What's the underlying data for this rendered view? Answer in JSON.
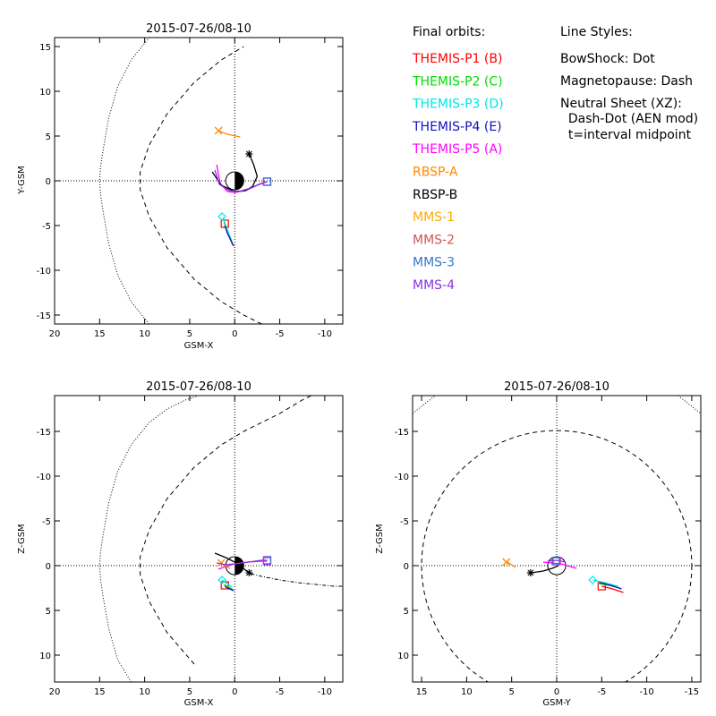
{
  "chart_data": [
    {
      "type": "line",
      "id": "xy",
      "title": "2015-07-26/08-10",
      "xlabel": "GSM-X",
      "ylabel": "Y-GSM",
      "xlim": [
        20,
        -12
      ],
      "ylim": [
        16,
        -16
      ],
      "xticks": [
        20,
        15,
        10,
        5,
        0,
        -5,
        -10
      ],
      "yticks": [
        -15,
        -10,
        -5,
        0,
        5,
        10,
        15
      ],
      "xtick_labels": [
        "20",
        "15",
        "10",
        "5",
        "0",
        "-5",
        "-10"
      ],
      "ytick_labels": [
        "-15",
        "-10",
        "-5",
        "0",
        "5",
        "10",
        "15"
      ],
      "earth_terminator_axis": "vertical",
      "bowshock": {
        "x": [
          9.5,
          11.5,
          13,
          14,
          14.6,
          14.9,
          15,
          14.9,
          14.6,
          14,
          13,
          11.5,
          9.5
        ],
        "y": [
          -16,
          -13.5,
          -10.5,
          -7,
          -3.5,
          -1.5,
          0,
          1.5,
          3.5,
          7,
          10.5,
          13.5,
          16
        ]
      },
      "magnetopause": {
        "x": [
          -3,
          -1,
          1.5,
          4.5,
          7.5,
          9.5,
          10.5,
          10.5,
          9.5,
          7.5,
          4.5,
          1.5,
          -1
        ],
        "y": [
          -16,
          -15,
          -13.5,
          -11,
          -7.5,
          -4,
          -1,
          1,
          4,
          7.5,
          11,
          13.5,
          15
        ]
      },
      "series": [
        {
          "name": "THEMIS-P1 (B)",
          "color": "#ff0000",
          "x": [
            0.2,
            0.8,
            1.1
          ],
          "y": [
            -7.2,
            -5.8,
            -4.8
          ],
          "marker": "square",
          "mx": 1.1,
          "my": -4.8
        },
        {
          "name": "THEMIS-P2 (C)",
          "color": "#00dd00",
          "x": [
            0.3,
            0.9,
            1.2
          ],
          "y": [
            -7.0,
            -5.5,
            -4.6
          ],
          "marker": "none"
        },
        {
          "name": "THEMIS-P3 (D)",
          "color": "#00e5e5",
          "x": [
            0.3,
            1.0,
            1.3
          ],
          "y": [
            -6.8,
            -5.0,
            -4.1
          ],
          "marker": "diamond",
          "mx": 1.4,
          "my": -4.0
        },
        {
          "name": "THEMIS-P4 (E)",
          "color": "#1010c0",
          "x": [
            0.1,
            0.8,
            1.1
          ],
          "y": [
            -7.3,
            -5.9,
            -5.0
          ],
          "marker": "none"
        },
        {
          "name": "THEMIS-P5 (A)",
          "color": "#ff00ff",
          "x": [
            2.0,
            1.6,
            0.8,
            0,
            -1.2,
            -2.5,
            -3.6
          ],
          "y": [
            1.8,
            -0.3,
            -1.2,
            -1.3,
            -1.1,
            -0.5,
            -0.1
          ],
          "marker": "square",
          "mx": -3.6,
          "my": -0.1
        },
        {
          "name": "RBSP-A",
          "color": "#ff8800",
          "x": [
            1.8,
            0.8,
            -0.6
          ],
          "y": [
            5.6,
            5.2,
            4.9
          ],
          "marker": "cross",
          "mx": 1.8,
          "my": 5.6
        },
        {
          "name": "RBSP-B",
          "color": "#000000",
          "x": [
            2.5,
            1.5,
            0,
            -1.2,
            -2.0,
            -2.5,
            -2.1,
            -1.6
          ],
          "y": [
            1.0,
            -0.5,
            -1.2,
            -1.1,
            -0.6,
            0.5,
            1.8,
            3.0
          ],
          "marker": "asterisk",
          "mx": -1.6,
          "my": 3.0
        },
        {
          "name": "MMS-4",
          "color": "#8833dd",
          "x": [
            2.2,
            1.7,
            0.6,
            -0.5,
            -1.8,
            -2.9,
            -3.6
          ],
          "y": [
            1.2,
            -0.4,
            -1.1,
            -1.2,
            -0.8,
            -0.3,
            -0.1
          ],
          "marker": "square",
          "mx": -3.6,
          "my": -0.1
        },
        {
          "name": "MMS-3",
          "color": "#3377cc",
          "x": [
            -3.6
          ],
          "y": [
            -0.1
          ],
          "marker": "square",
          "mx": -3.6,
          "my": -0.1
        }
      ]
    },
    {
      "type": "line",
      "id": "xz",
      "title": "2015-07-26/08-10",
      "xlabel": "GSM-X",
      "ylabel": "Z-GSM",
      "xlim": [
        20,
        -12
      ],
      "ylim": [
        -19,
        13
      ],
      "xticks": [
        20,
        15,
        10,
        5,
        0,
        -5,
        -10
      ],
      "yticks": [
        -15,
        -10,
        -5,
        0,
        5,
        10
      ],
      "xtick_labels": [
        "20",
        "15",
        "10",
        "5",
        "0",
        "-5",
        "-10"
      ],
      "ytick_labels": [
        "-15",
        "-10",
        "-5",
        "0",
        "5",
        "10"
      ],
      "earth_terminator_axis": "vertical",
      "bowshock": {
        "x": [
          11.5,
          13,
          14,
          14.6,
          14.9,
          15,
          14.9,
          14.6,
          14,
          13,
          11.5,
          9.5,
          7.5,
          5.5,
          4
        ],
        "y": [
          13,
          10.5,
          7,
          3.5,
          1.5,
          0,
          -1.5,
          -3.5,
          -7,
          -10.5,
          -13.5,
          -16,
          -17.5,
          -18.5,
          -19
        ]
      },
      "magnetopause": {
        "x": [
          4.5,
          7.5,
          9.5,
          10.5,
          10.5,
          9.5,
          7.5,
          4.5,
          1.5,
          -1,
          -3,
          -5,
          -7.5,
          -8.5
        ],
        "y": [
          11,
          7.5,
          4,
          1,
          -1,
          -4,
          -7.5,
          -11,
          -13.5,
          -15,
          -16,
          -17,
          -18.5,
          -19
        ]
      },
      "neutral_sheet": {
        "x": [
          -1.8,
          -3,
          -5,
          -7,
          -9,
          -11,
          -12
        ],
        "y": [
          0.9,
          1.2,
          1.6,
          1.9,
          2.1,
          2.3,
          2.3
        ]
      },
      "series": [
        {
          "name": "THEMIS-P1 (B)",
          "color": "#ff0000",
          "x": [
            0.2,
            0.8,
            1.1
          ],
          "y": [
            2.7,
            2.4,
            2.2
          ],
          "marker": "square",
          "mx": 1.1,
          "my": 2.2
        },
        {
          "name": "THEMIS-P2 (C)",
          "color": "#00dd00",
          "x": [
            0.3,
            0.9,
            1.2
          ],
          "y": [
            2.6,
            2.3,
            2.1
          ],
          "marker": "none"
        },
        {
          "name": "THEMIS-P3 (D)",
          "color": "#00e5e5",
          "x": [
            0.3,
            1.0,
            1.4
          ],
          "y": [
            2.4,
            1.9,
            1.6
          ],
          "marker": "diamond",
          "mx": 1.4,
          "my": 1.6
        },
        {
          "name": "THEMIS-P4 (E)",
          "color": "#1010c0",
          "x": [
            0.1,
            0.8,
            1.1
          ],
          "y": [
            2.8,
            2.5,
            2.3
          ],
          "marker": "none"
        },
        {
          "name": "THEMIS-P5 (A)",
          "color": "#ff00ff",
          "x": [
            1.8,
            1.0,
            0,
            -1.5,
            -3.0,
            -3.6
          ],
          "y": [
            0.4,
            0.1,
            -0.2,
            -0.4,
            -0.5,
            -0.5
          ],
          "marker": "square",
          "mx": -3.6,
          "my": -0.5
        },
        {
          "name": "RBSP-A",
          "color": "#ff8800",
          "x": [
            1.5,
            1.0,
            0.5
          ],
          "y": [
            -0.3,
            0.1,
            0.3
          ],
          "marker": "cross",
          "mx": 1.5,
          "my": -0.3
        },
        {
          "name": "RBSP-B",
          "color": "#000000",
          "x": [
            2.2,
            1.0,
            0,
            -0.8,
            -1.6
          ],
          "y": [
            -1.4,
            -0.9,
            -0.4,
            0.2,
            0.8
          ],
          "marker": "asterisk",
          "mx": -1.6,
          "my": 0.8
        },
        {
          "name": "MMS-4",
          "color": "#8833dd",
          "x": [
            2.0,
            1.0,
            0,
            -1.5,
            -3.0,
            -3.6
          ],
          "y": [
            -0.3,
            -0.1,
            -0.2,
            -0.4,
            -0.6,
            -0.6
          ],
          "marker": "square",
          "mx": -3.6,
          "my": -0.6
        },
        {
          "name": "MMS-3",
          "color": "#3377cc",
          "x": [
            -3.6
          ],
          "y": [
            -0.6
          ],
          "marker": "square",
          "mx": -3.6,
          "my": -0.6
        }
      ]
    },
    {
      "type": "line",
      "id": "yz",
      "title": "2015-07-26/08-10",
      "xlabel": "GSM-Y",
      "ylabel": "Z-GSM",
      "xlim": [
        16,
        -16
      ],
      "ylim": [
        -19,
        13
      ],
      "xticks": [
        15,
        10,
        5,
        0,
        -5,
        -10,
        -15
      ],
      "yticks": [
        -15,
        -10,
        -5,
        0,
        5,
        10
      ],
      "xtick_labels": [
        "15",
        "10",
        "5",
        "0",
        "-5",
        "-10",
        "-15"
      ],
      "ytick_labels": [
        "-15",
        "-10",
        "-5",
        "0",
        "5",
        "10"
      ],
      "earth_terminator_axis": "none",
      "magnetopause_circle": {
        "cx": 0,
        "cy": 0,
        "r": 15
      },
      "bowshock_corners": [
        {
          "x": [
            16,
            13.5
          ],
          "y": [
            -17,
            -19
          ]
        },
        {
          "x": [
            -13.5,
            -16
          ],
          "y": [
            -19,
            -17
          ]
        }
      ],
      "series": [
        {
          "name": "THEMIS-P1 (B)",
          "color": "#ff0000",
          "x": [
            -5.0,
            -6.2,
            -7.4
          ],
          "y": [
            2.3,
            2.6,
            3.0
          ],
          "marker": "square",
          "mx": -5.0,
          "my": 2.3
        },
        {
          "name": "THEMIS-P2 (C)",
          "color": "#00dd00",
          "x": [
            -4.6,
            -5.8,
            -7.0
          ],
          "y": [
            2.0,
            2.2,
            2.5
          ],
          "marker": "none"
        },
        {
          "name": "THEMIS-P3 (D)",
          "color": "#00e5e5",
          "x": [
            -4.0,
            -5.3,
            -6.8
          ],
          "y": [
            1.6,
            1.9,
            2.3
          ],
          "marker": "diamond",
          "mx": -4.0,
          "my": 1.6
        },
        {
          "name": "THEMIS-P4 (E)",
          "color": "#1010c0",
          "x": [
            -4.8,
            -6.0,
            -7.2
          ],
          "y": [
            1.9,
            2.2,
            2.6
          ],
          "marker": "none"
        },
        {
          "name": "THEMIS-P5 (A)",
          "color": "#ff00ff",
          "x": [
            1.5,
            0.5,
            -0.5,
            -1.5,
            -2.2
          ],
          "y": [
            -0.4,
            -0.3,
            -0.2,
            0.1,
            0.3
          ],
          "marker": "square",
          "mx": 0,
          "my": -0.5
        },
        {
          "name": "RBSP-A",
          "color": "#ff8800",
          "x": [
            5.5,
            5.0,
            4.6
          ],
          "y": [
            -0.4,
            -0.1,
            0.2
          ],
          "marker": "cross",
          "mx": 5.6,
          "my": -0.4
        },
        {
          "name": "RBSP-B",
          "color": "#000000",
          "x": [
            2.8,
            1.5,
            0.5,
            -0.2
          ],
          "y": [
            0.8,
            0.6,
            0.3,
            0
          ],
          "marker": "asterisk",
          "mx": 2.9,
          "my": 0.8
        },
        {
          "name": "MMS-4",
          "color": "#8833dd",
          "x": [
            1.0,
            0,
            -1.0
          ],
          "y": [
            -0.5,
            -0.6,
            -0.4
          ],
          "marker": "square",
          "mx": 0.1,
          "my": -0.5
        },
        {
          "name": "MMS-3",
          "color": "#3377cc",
          "x": [
            0.1
          ],
          "y": [
            -0.5
          ],
          "marker": "square",
          "mx": 0.1,
          "my": -0.5
        }
      ]
    }
  ],
  "legend": {
    "title": "Final orbits:",
    "items": [
      {
        "label": "THEMIS-P1 (B)",
        "color": "#ff0000"
      },
      {
        "label": "THEMIS-P2 (C)",
        "color": "#00dd00"
      },
      {
        "label": "THEMIS-P3 (D)",
        "color": "#00e5e5"
      },
      {
        "label": "THEMIS-P4 (E)",
        "color": "#1010c0"
      },
      {
        "label": "THEMIS-P5 (A)",
        "color": "#ff00ff"
      },
      {
        "label": "RBSP-A",
        "color": "#ff8800"
      },
      {
        "label": "RBSP-B",
        "color": "#000000"
      },
      {
        "label": "MMS-1",
        "color": "#ffaa00"
      },
      {
        "label": "MMS-2",
        "color": "#cc5555"
      },
      {
        "label": "MMS-3",
        "color": "#3377cc"
      },
      {
        "label": "MMS-4",
        "color": "#8833dd"
      }
    ]
  },
  "line_styles": {
    "title": "Line Styles:",
    "lines": [
      "BowShock: Dot",
      "Magnetopause: Dash",
      "Neutral Sheet (XZ):",
      "  Dash-Dot (AEN mod)",
      "  t=interval midpoint"
    ]
  }
}
